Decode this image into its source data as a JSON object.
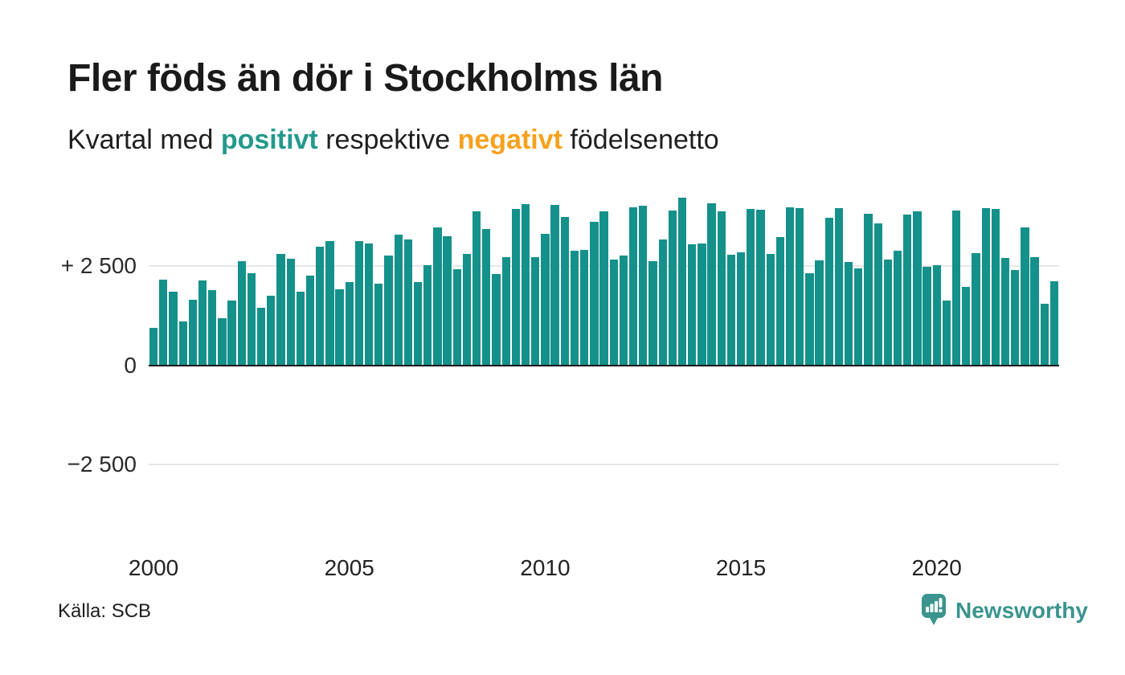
{
  "header": {
    "title": "Fler föds än dör i Stockholms län",
    "subtitle": {
      "part1": "Kvartal med ",
      "positive_word": "positivt",
      "part2": " respektive ",
      "negative_word": "negativt",
      "part3": " födelsenetto"
    }
  },
  "footer": {
    "source": "Källa: SCB",
    "brand": "Newsworthy",
    "logo_icon": "newsworthy-pin-barchart-icon"
  },
  "colors": {
    "bar_positive": "#14918a",
    "bar_negative": "#f7a11e",
    "subtitle_positive": "#23998c",
    "subtitle_negative": "#f7a11e",
    "brand": "#3b948e",
    "grid": "#e7e7e7",
    "axis_line": "#191919",
    "text_dark": "#1a1a1a"
  },
  "chart_data": {
    "type": "bar",
    "title": "Fler föds än dör i Stockholms län",
    "subtitle": "Kvartal med positivt respektive negativt födelsenetto",
    "xlabel": "",
    "ylabel": "",
    "x_start": "2000Q1",
    "x_end": "2023Q1",
    "grid": "horizontal",
    "legend_position": "none",
    "ylim": [
      -2500,
      4400
    ],
    "positive_color": "#14918a",
    "negative_color": "#f7a11e",
    "yticks": [
      {
        "value": 2500,
        "label": "+ 2 500"
      },
      {
        "value": 0,
        "label": "0"
      },
      {
        "value": -2500,
        "label": "−2 500"
      }
    ],
    "xticks": [
      {
        "year": 2000,
        "label": "2000"
      },
      {
        "year": 2005,
        "label": "2005"
      },
      {
        "year": 2010,
        "label": "2010"
      },
      {
        "year": 2015,
        "label": "2015"
      },
      {
        "year": 2020,
        "label": "2020"
      }
    ],
    "categories": [
      "2000Q1",
      "2000Q2",
      "2000Q3",
      "2000Q4",
      "2001Q1",
      "2001Q2",
      "2001Q3",
      "2001Q4",
      "2002Q1",
      "2002Q2",
      "2002Q3",
      "2002Q4",
      "2003Q1",
      "2003Q2",
      "2003Q3",
      "2003Q4",
      "2004Q1",
      "2004Q2",
      "2004Q3",
      "2004Q4",
      "2005Q1",
      "2005Q2",
      "2005Q3",
      "2005Q4",
      "2006Q1",
      "2006Q2",
      "2006Q3",
      "2006Q4",
      "2007Q1",
      "2007Q2",
      "2007Q3",
      "2007Q4",
      "2008Q1",
      "2008Q2",
      "2008Q3",
      "2008Q4",
      "2009Q1",
      "2009Q2",
      "2009Q3",
      "2009Q4",
      "2010Q1",
      "2010Q2",
      "2010Q3",
      "2010Q4",
      "2011Q1",
      "2011Q2",
      "2011Q3",
      "2011Q4",
      "2012Q1",
      "2012Q2",
      "2012Q3",
      "2012Q4",
      "2013Q1",
      "2013Q2",
      "2013Q3",
      "2013Q4",
      "2014Q1",
      "2014Q2",
      "2014Q3",
      "2014Q4",
      "2015Q1",
      "2015Q2",
      "2015Q3",
      "2015Q4",
      "2016Q1",
      "2016Q2",
      "2016Q3",
      "2016Q4",
      "2017Q1",
      "2017Q2",
      "2017Q3",
      "2017Q4",
      "2018Q1",
      "2018Q2",
      "2018Q3",
      "2018Q4",
      "2019Q1",
      "2019Q2",
      "2019Q3",
      "2019Q4",
      "2020Q1",
      "2020Q2",
      "2020Q3",
      "2020Q4",
      "2021Q1",
      "2021Q2",
      "2021Q3",
      "2021Q4",
      "2022Q1",
      "2022Q2",
      "2022Q3",
      "2022Q4",
      "2023Q1"
    ],
    "values": [
      940,
      2160,
      1850,
      1100,
      1640,
      2130,
      1900,
      1190,
      1620,
      2620,
      2320,
      1450,
      1750,
      2800,
      2680,
      1860,
      2260,
      2980,
      3130,
      1910,
      2100,
      3120,
      3070,
      2060,
      2760,
      3280,
      3160,
      2100,
      2530,
      3480,
      3250,
      2410,
      2800,
      3870,
      3430,
      2300,
      2720,
      3940,
      4050,
      2720,
      3310,
      4040,
      3730,
      2890,
      2910,
      3620,
      3880,
      2660,
      2770,
      3980,
      4020,
      2630,
      3160,
      3900,
      4230,
      3050,
      3070,
      4080,
      3880,
      2780,
      2840,
      3940,
      3920,
      2810,
      3230,
      3980,
      3950,
      2320,
      2650,
      3710,
      3950,
      2610,
      2440,
      3810,
      3570,
      2660,
      2880,
      3800,
      3880,
      2470,
      2530,
      1630,
      3900,
      1980,
      2820,
      3960,
      3930,
      2710,
      2400,
      3480,
      2730,
      1540,
      2120
    ]
  }
}
